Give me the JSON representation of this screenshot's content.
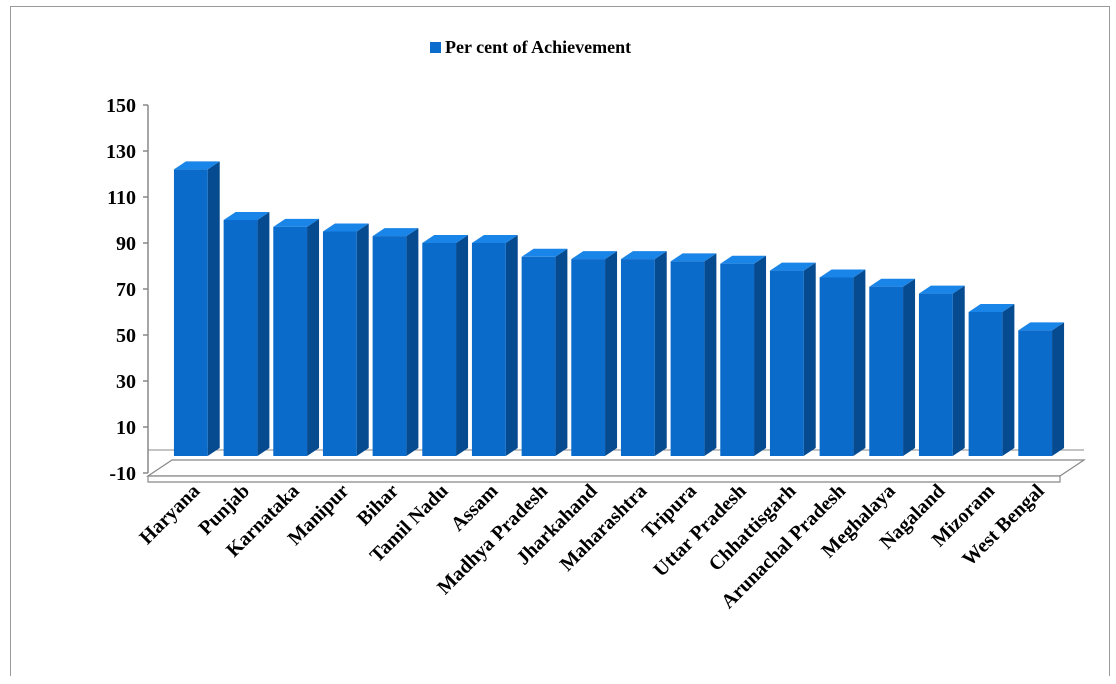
{
  "chart_data": {
    "type": "bar",
    "legend": {
      "label": "Per cent of Achievement",
      "position": "top",
      "color": "#0a6ccc"
    },
    "categories": [
      "Haryana",
      "Punjab",
      "Karnataka",
      "Manipur",
      "Bihar",
      "Tamil Nadu",
      "Assam",
      "Madhya Pradesh",
      "Jharkahand",
      "Maharashtra",
      "Tripura",
      "Uttar Pradesh",
      "Chhattisgarh",
      "Arunachal Pradesh",
      "Meghalaya",
      "Nagaland",
      "Mizoram",
      "West Bengal"
    ],
    "series": [
      {
        "name": "Per cent of Achievement",
        "values": [
          122,
          100,
          97,
          95,
          93,
          90,
          90,
          84,
          83,
          83,
          82,
          81,
          78,
          75,
          71,
          68,
          60,
          52
        ]
      }
    ],
    "yticks": [
      -10,
      10,
      30,
      50,
      70,
      90,
      110,
      130,
      150
    ],
    "ylim": [
      -10,
      150
    ],
    "style": "3d-column",
    "colors": {
      "front": "#0b6bcb",
      "side": "#064a8f",
      "top": "#1a85e8",
      "axis": "#888888"
    }
  }
}
